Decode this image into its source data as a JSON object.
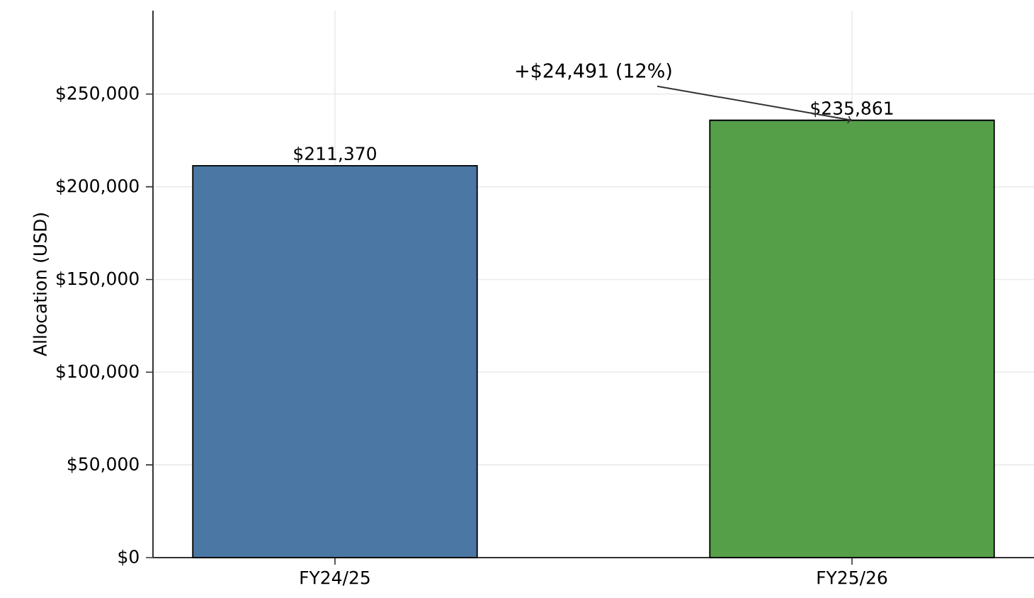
{
  "chart_data": {
    "type": "bar",
    "ylabel": "Allocation (USD)",
    "categories": [
      "FY24/25",
      "FY25/26"
    ],
    "values": [
      211370,
      235861
    ],
    "colors": [
      "#4a77a3",
      "#559f49"
    ],
    "value_labels": [
      "$211,370",
      "$235,861"
    ],
    "ylim": [
      0,
      295000
    ],
    "yticks": [
      {
        "value": 0,
        "label": "$0"
      },
      {
        "value": 50000,
        "label": "$50,000"
      },
      {
        "value": 100000,
        "label": "$100,000"
      },
      {
        "value": 150000,
        "label": "$150,000"
      },
      {
        "value": 200000,
        "label": "$200,000"
      },
      {
        "value": 250000,
        "label": "$250,000"
      }
    ],
    "grid": true,
    "annotations": [
      {
        "text": "+$24,491 (12%)",
        "x": "FY25/26",
        "y": 235861
      }
    ]
  }
}
